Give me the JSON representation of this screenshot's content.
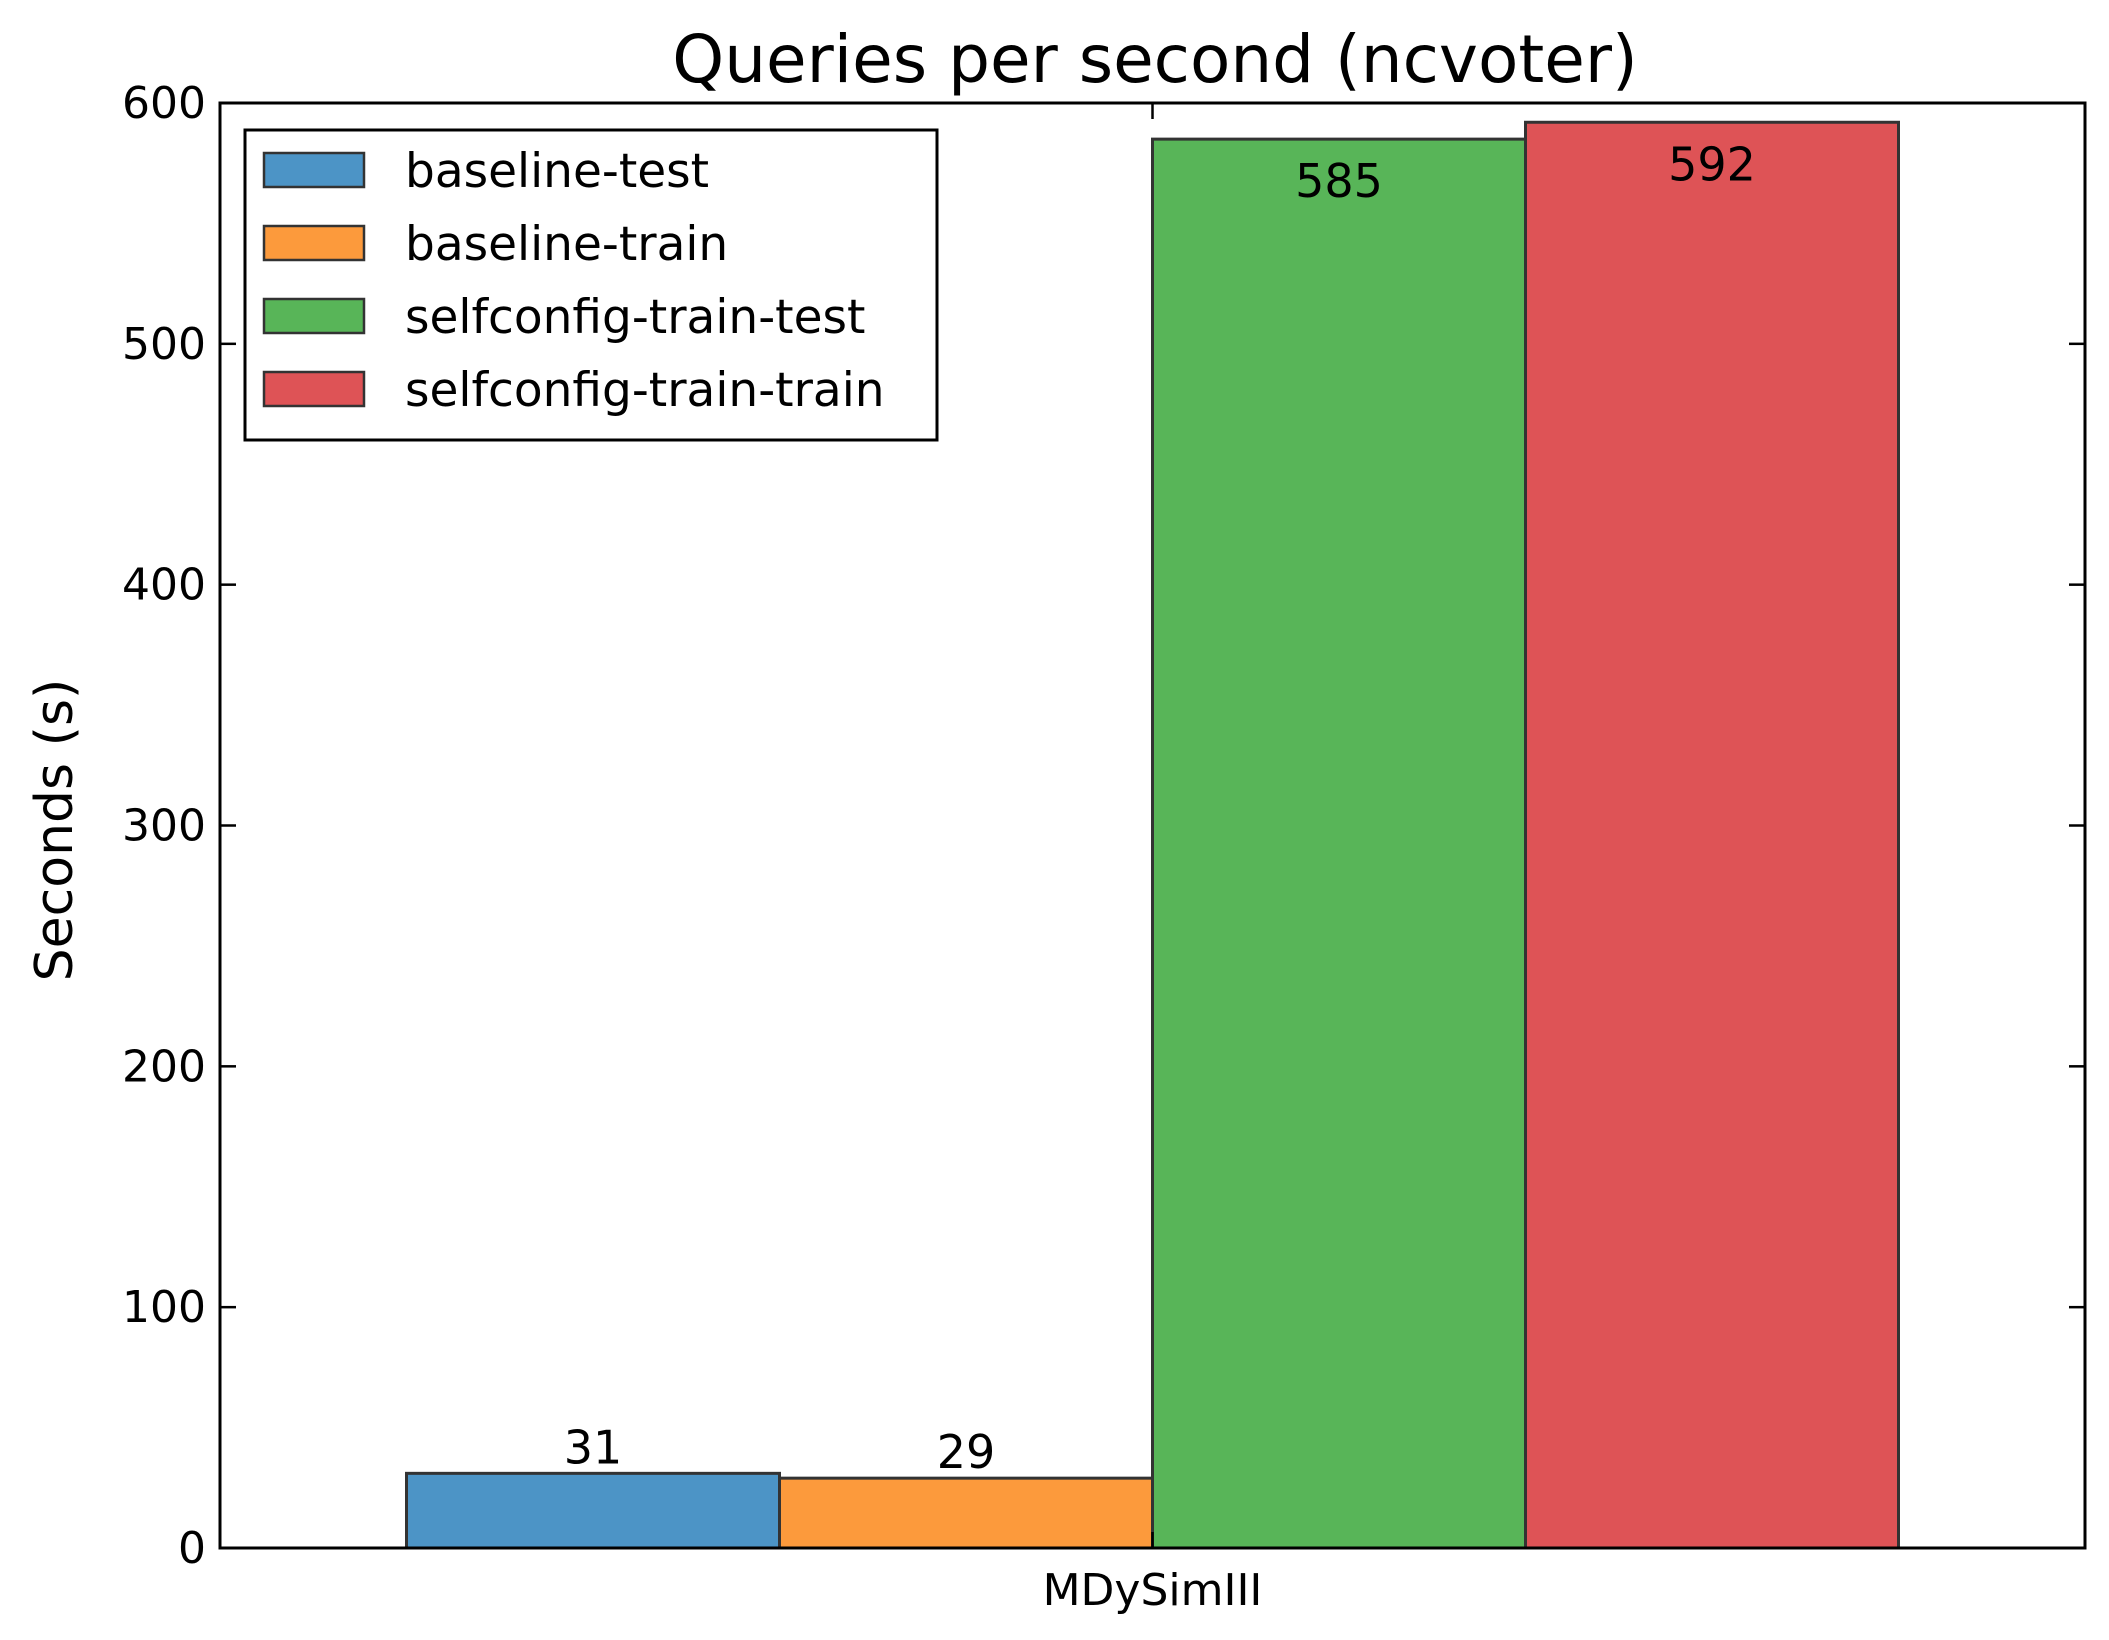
{
  "chart_data": {
    "type": "bar",
    "title": "Queries per second (ncvoter)",
    "xlabel": "",
    "ylabel": "Seconds (s)",
    "categories": [
      "MDySimIII"
    ],
    "ylim": [
      0,
      600
    ],
    "yticks": [
      0,
      100,
      200,
      300,
      400,
      500,
      600
    ],
    "grid": false,
    "legend_position": "top-left",
    "series": [
      {
        "name": "baseline-test",
        "values": [
          31
        ],
        "label": "31",
        "color": "#4c94c6"
      },
      {
        "name": "baseline-train",
        "values": [
          29
        ],
        "label": "29",
        "color": "#fc9a3c"
      },
      {
        "name": "selfconfig-train-test",
        "values": [
          585
        ],
        "label": "585",
        "color": "#58b558"
      },
      {
        "name": "selfconfig-train-train",
        "values": [
          592
        ],
        "label": "592",
        "color": "#de5356"
      }
    ]
  }
}
